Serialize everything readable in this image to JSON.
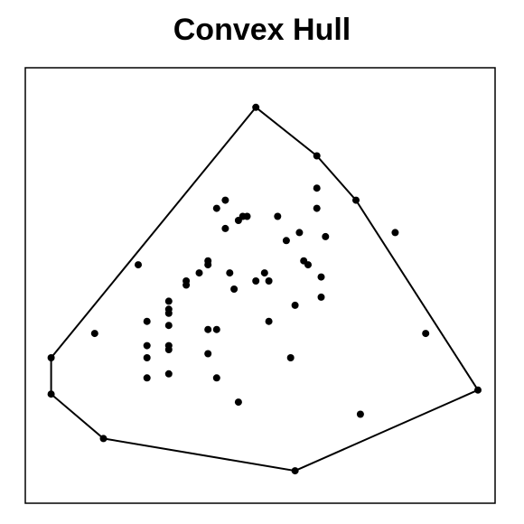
{
  "chart_data": {
    "type": "scatter",
    "title": "Convex Hull",
    "xlabel": "",
    "ylabel": "",
    "grid": false,
    "axes_visible": false,
    "xlim": [
      0,
      100
    ],
    "ylim": [
      0,
      100
    ],
    "series": [
      {
        "points": [
          [
            2,
            32
          ],
          [
            2,
            23
          ],
          [
            14,
            12
          ],
          [
            58,
            4
          ],
          [
            100,
            24
          ],
          [
            73,
            18
          ],
          [
            88,
            38
          ],
          [
            72,
            71
          ],
          [
            63,
            82
          ],
          [
            49,
            94
          ],
          [
            22,
            55
          ],
          [
            12,
            38
          ],
          [
            24,
            41
          ],
          [
            24,
            35
          ],
          [
            24,
            32
          ],
          [
            24,
            27
          ],
          [
            29,
            46
          ],
          [
            29,
            44
          ],
          [
            29,
            43
          ],
          [
            29,
            40
          ],
          [
            29,
            34
          ],
          [
            29,
            35
          ],
          [
            29,
            28
          ],
          [
            33,
            50
          ],
          [
            33,
            51
          ],
          [
            36,
            53
          ],
          [
            38,
            55
          ],
          [
            38,
            56
          ],
          [
            38,
            39
          ],
          [
            38,
            33
          ],
          [
            40,
            39
          ],
          [
            40,
            27
          ],
          [
            40,
            69
          ],
          [
            42,
            71
          ],
          [
            43,
            53
          ],
          [
            42,
            64
          ],
          [
            44,
            49
          ],
          [
            45,
            66
          ],
          [
            45,
            21
          ],
          [
            46,
            67
          ],
          [
            47,
            67
          ],
          [
            49,
            51
          ],
          [
            51,
            53
          ],
          [
            52,
            51
          ],
          [
            52,
            41
          ],
          [
            54,
            67
          ],
          [
            56,
            61
          ],
          [
            57,
            32
          ],
          [
            58,
            45
          ],
          [
            59,
            63
          ],
          [
            60,
            56
          ],
          [
            61,
            55
          ],
          [
            63,
            74
          ],
          [
            63,
            69
          ],
          [
            64,
            47
          ],
          [
            64,
            52
          ],
          [
            65,
            62
          ],
          [
            81,
            63
          ]
        ]
      }
    ],
    "hull": [
      [
        49,
        94
      ],
      [
        63,
        82
      ],
      [
        72,
        71
      ],
      [
        100,
        24
      ],
      [
        58,
        4
      ],
      [
        14,
        12
      ],
      [
        2,
        23
      ],
      [
        2,
        32
      ],
      [
        49,
        94
      ]
    ]
  }
}
